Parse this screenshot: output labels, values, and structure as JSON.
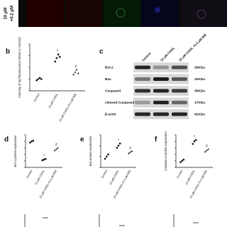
{
  "top": {
    "row_label": [
      "10 μM",
      "+0.2 μM"
    ]
  },
  "panels": [
    {
      "label": "b",
      "ylabel": "Intensity of red fluorescence (Ratio to Control)",
      "categories": [
        "Control",
        "10 μM CHOL",
        "10 μM CHOL+0.2 μM BIE"
      ],
      "points": [
        [
          0.9,
          1.0,
          1.1,
          1.0
        ],
        [
          2.5,
          2.8,
          3.1,
          2.9
        ],
        [
          1.4,
          1.6,
          1.8,
          1.5
        ]
      ],
      "significance": [
        null,
        "*",
        "#"
      ],
      "ylim": [
        0,
        4
      ],
      "yticks": [
        0,
        1,
        2,
        3,
        4
      ]
    },
    {
      "label": "d",
      "ylabel": "Bcl-2 protein expression",
      "categories": [
        "Control",
        "10 μM CHOL",
        "10 μM CHOL+0.2 μM BIE"
      ],
      "points": [
        [
          1.9,
          2.0,
          2.05
        ],
        [
          0.55,
          0.6,
          0.65
        ],
        [
          1.3,
          1.4,
          1.5
        ]
      ],
      "significance": [
        null,
        "*",
        "#"
      ],
      "ylim": [
        0,
        2.5
      ],
      "yticks": [
        0,
        0.5,
        1,
        1.5,
        2,
        2.5
      ]
    },
    {
      "label": "e",
      "ylabel": "Bax protein expression",
      "categories": [
        "Control",
        "10 μM CHOL",
        "10 μM CHOL+0.2 μM BIE"
      ],
      "points": [
        [
          0.8,
          1.0,
          1.2
        ],
        [
          1.8,
          2.0,
          2.2
        ],
        [
          1.3,
          1.4,
          1.5
        ]
      ],
      "significance": [
        null,
        "*",
        "#"
      ],
      "ylim": [
        0,
        3
      ],
      "yticks": [
        0,
        1,
        2,
        3
      ]
    },
    {
      "label": "f",
      "ylabel": "Caspase-3 protein expression",
      "categories": [
        "Control",
        "10 μM CHOL",
        "10 μM CHOL+0.2 μM BIE"
      ],
      "points": [
        [
          0.4,
          0.5,
          0.6
        ],
        [
          1.8,
          2.0,
          2.1
        ],
        [
          1.2,
          1.3,
          1.4
        ]
      ],
      "significance": [
        null,
        "*",
        "#"
      ],
      "ylim": [
        0,
        2.5
      ],
      "yticks": [
        0,
        0.5,
        1,
        1.5,
        2,
        2.5
      ]
    }
  ],
  "blot": {
    "label": "c",
    "columns": [
      "Control",
      "10 μM CHOL",
      "10 μM CHOL +0.2 μM BIE"
    ],
    "rows": [
      {
        "protein": "Bcl-2",
        "size": "26KDa"
      },
      {
        "protein": "Bax",
        "size": "20KDa"
      },
      {
        "protein": "Caspase3",
        "size": "35KDa"
      },
      {
        "protein": "cleaved Caspase3",
        "size": "17KDa"
      },
      {
        "protein": "β-actin",
        "size": "42KDa"
      }
    ]
  }
}
